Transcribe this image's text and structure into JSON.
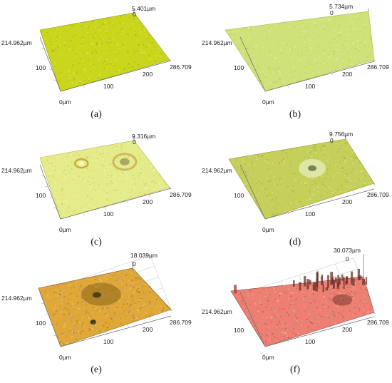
{
  "panels": [
    {
      "id": "a",
      "caption": "(a)",
      "zmax_label": "5.401µm",
      "zero_label": "0",
      "origin_label": "0µm",
      "y_label_100": "100",
      "y_label_max": "214.962µm",
      "x_label_100": "100",
      "x_label_200": "200",
      "x_label_max": "286.709",
      "surface_color": "#c9d61c",
      "surface_dark": "#8f9a10",
      "features": []
    },
    {
      "id": "b",
      "caption": "(b)",
      "zmax_label": "5.734µm",
      "zero_label": "0",
      "origin_label": "0µm",
      "y_label_100": "100",
      "y_label_max": "214.962µm",
      "x_label_100": "100",
      "x_label_200": "200",
      "x_label_max": "286.709",
      "surface_color": "#cfe27a",
      "surface_dark": "#a8bd45",
      "features": []
    },
    {
      "id": "c",
      "caption": "(c)",
      "zmax_label": "9.316µm",
      "zero_label": "0",
      "origin_label": "0µm",
      "y_label_100": "100",
      "y_label_max": "214.962µm",
      "x_label_100": "100",
      "x_label_200": "200",
      "x_label_max": "286.709",
      "surface_color": "#e4ec8a",
      "surface_dark": "#c2b04a",
      "features": [
        "crater-left",
        "crater-right"
      ]
    },
    {
      "id": "d",
      "caption": "(d)",
      "zmax_label": "9.756µm",
      "zero_label": "0",
      "origin_label": "0µm",
      "y_label_100": "100",
      "y_label_max": "214.962µm",
      "x_label_100": "100",
      "x_label_200": "200",
      "x_label_max": "286.709",
      "surface_color": "#c5cf5a",
      "surface_dark": "#8e9a2a",
      "features": [
        "crater-center"
      ]
    },
    {
      "id": "e",
      "caption": "(e)",
      "zmax_label": "18.039µm",
      "zero_label": "0",
      "origin_label": "0µm",
      "y_label_100": "100",
      "y_label_max": "214.962µm",
      "x_label_100": "100",
      "x_label_200": "200",
      "x_label_max": "286.709",
      "surface_color": "#e1a737",
      "surface_dark": "#7a5a12",
      "features": [
        "dark-patch"
      ]
    },
    {
      "id": "f",
      "caption": "(f)",
      "zmax_label": "30.073µm",
      "zero_label": "0",
      "origin_label": "0µm",
      "y_label_100": "100",
      "y_label_max": "214.962µm",
      "x_label_100": "100",
      "x_label_200": "200",
      "x_label_max": "286.709",
      "surface_color": "#ee7f72",
      "surface_dark": "#8a3a30",
      "features": [
        "spikes"
      ]
    }
  ]
}
